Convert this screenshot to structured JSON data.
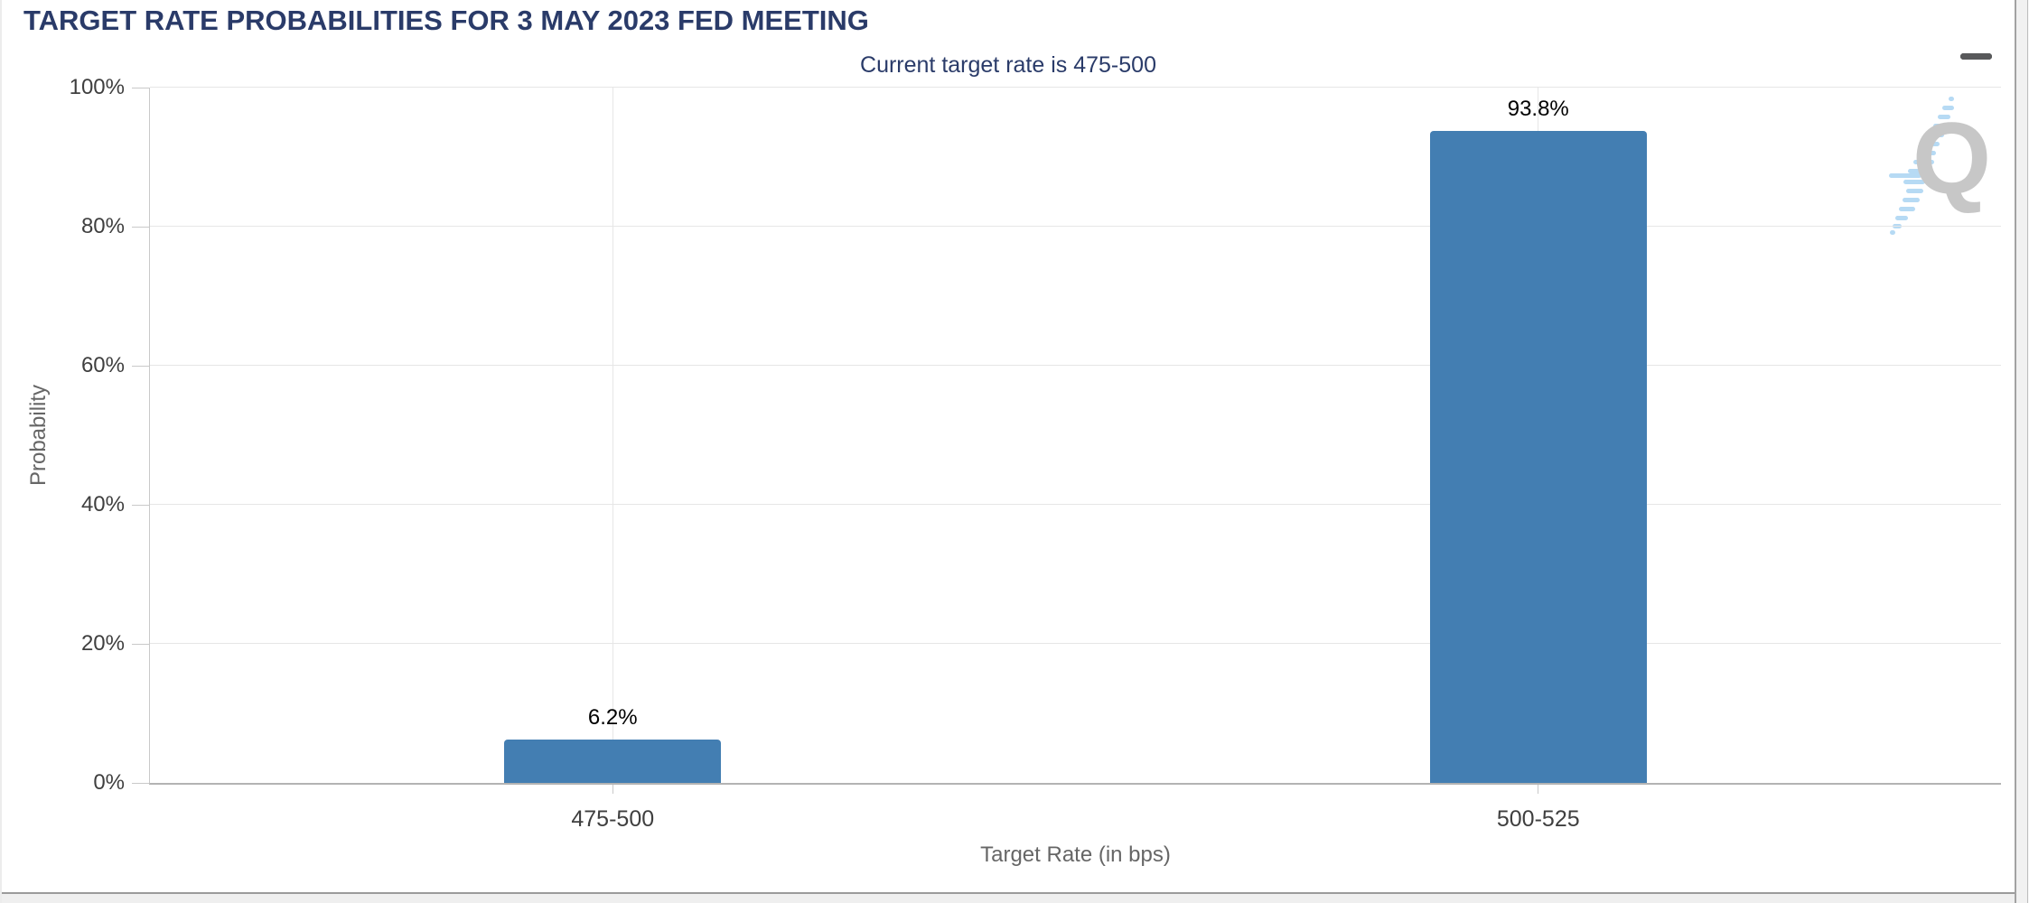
{
  "header": {
    "title": "TARGET RATE PROBABILITIES FOR 3 MAY 2023 FED MEETING",
    "subtitle": "Current target rate is 475-500"
  },
  "menu": {
    "icon": "hamburger-menu-icon"
  },
  "watermark": {
    "letter": "Q"
  },
  "colors": {
    "title_navy": "#2a3b69",
    "bar_blue": "#437eb2",
    "gridline": "#e6e6e6",
    "axis_line": "#b3b3b3",
    "label_gray": "#666666",
    "watermark_gray": "#c7c7c7",
    "watermark_blue": "#a9d3f2"
  },
  "chart_data": {
    "type": "bar",
    "title": "TARGET RATE PROBABILITIES FOR 3 MAY 2023 FED MEETING",
    "subtitle": "Current target rate is 475-500",
    "categories": [
      "475-500",
      "500-525"
    ],
    "values": [
      6.2,
      93.8
    ],
    "value_labels": [
      "6.2%",
      "93.8%"
    ],
    "xlabel": "Target Rate (in bps)",
    "ylabel": "Probability",
    "ylim": [
      0,
      100
    ],
    "yticks": [
      0,
      20,
      40,
      60,
      80,
      100
    ],
    "ytick_labels": [
      "0%",
      "20%",
      "40%",
      "60%",
      "80%",
      "100%"
    ],
    "grid": true,
    "legend": "none",
    "bar_color": "#437eb2"
  }
}
